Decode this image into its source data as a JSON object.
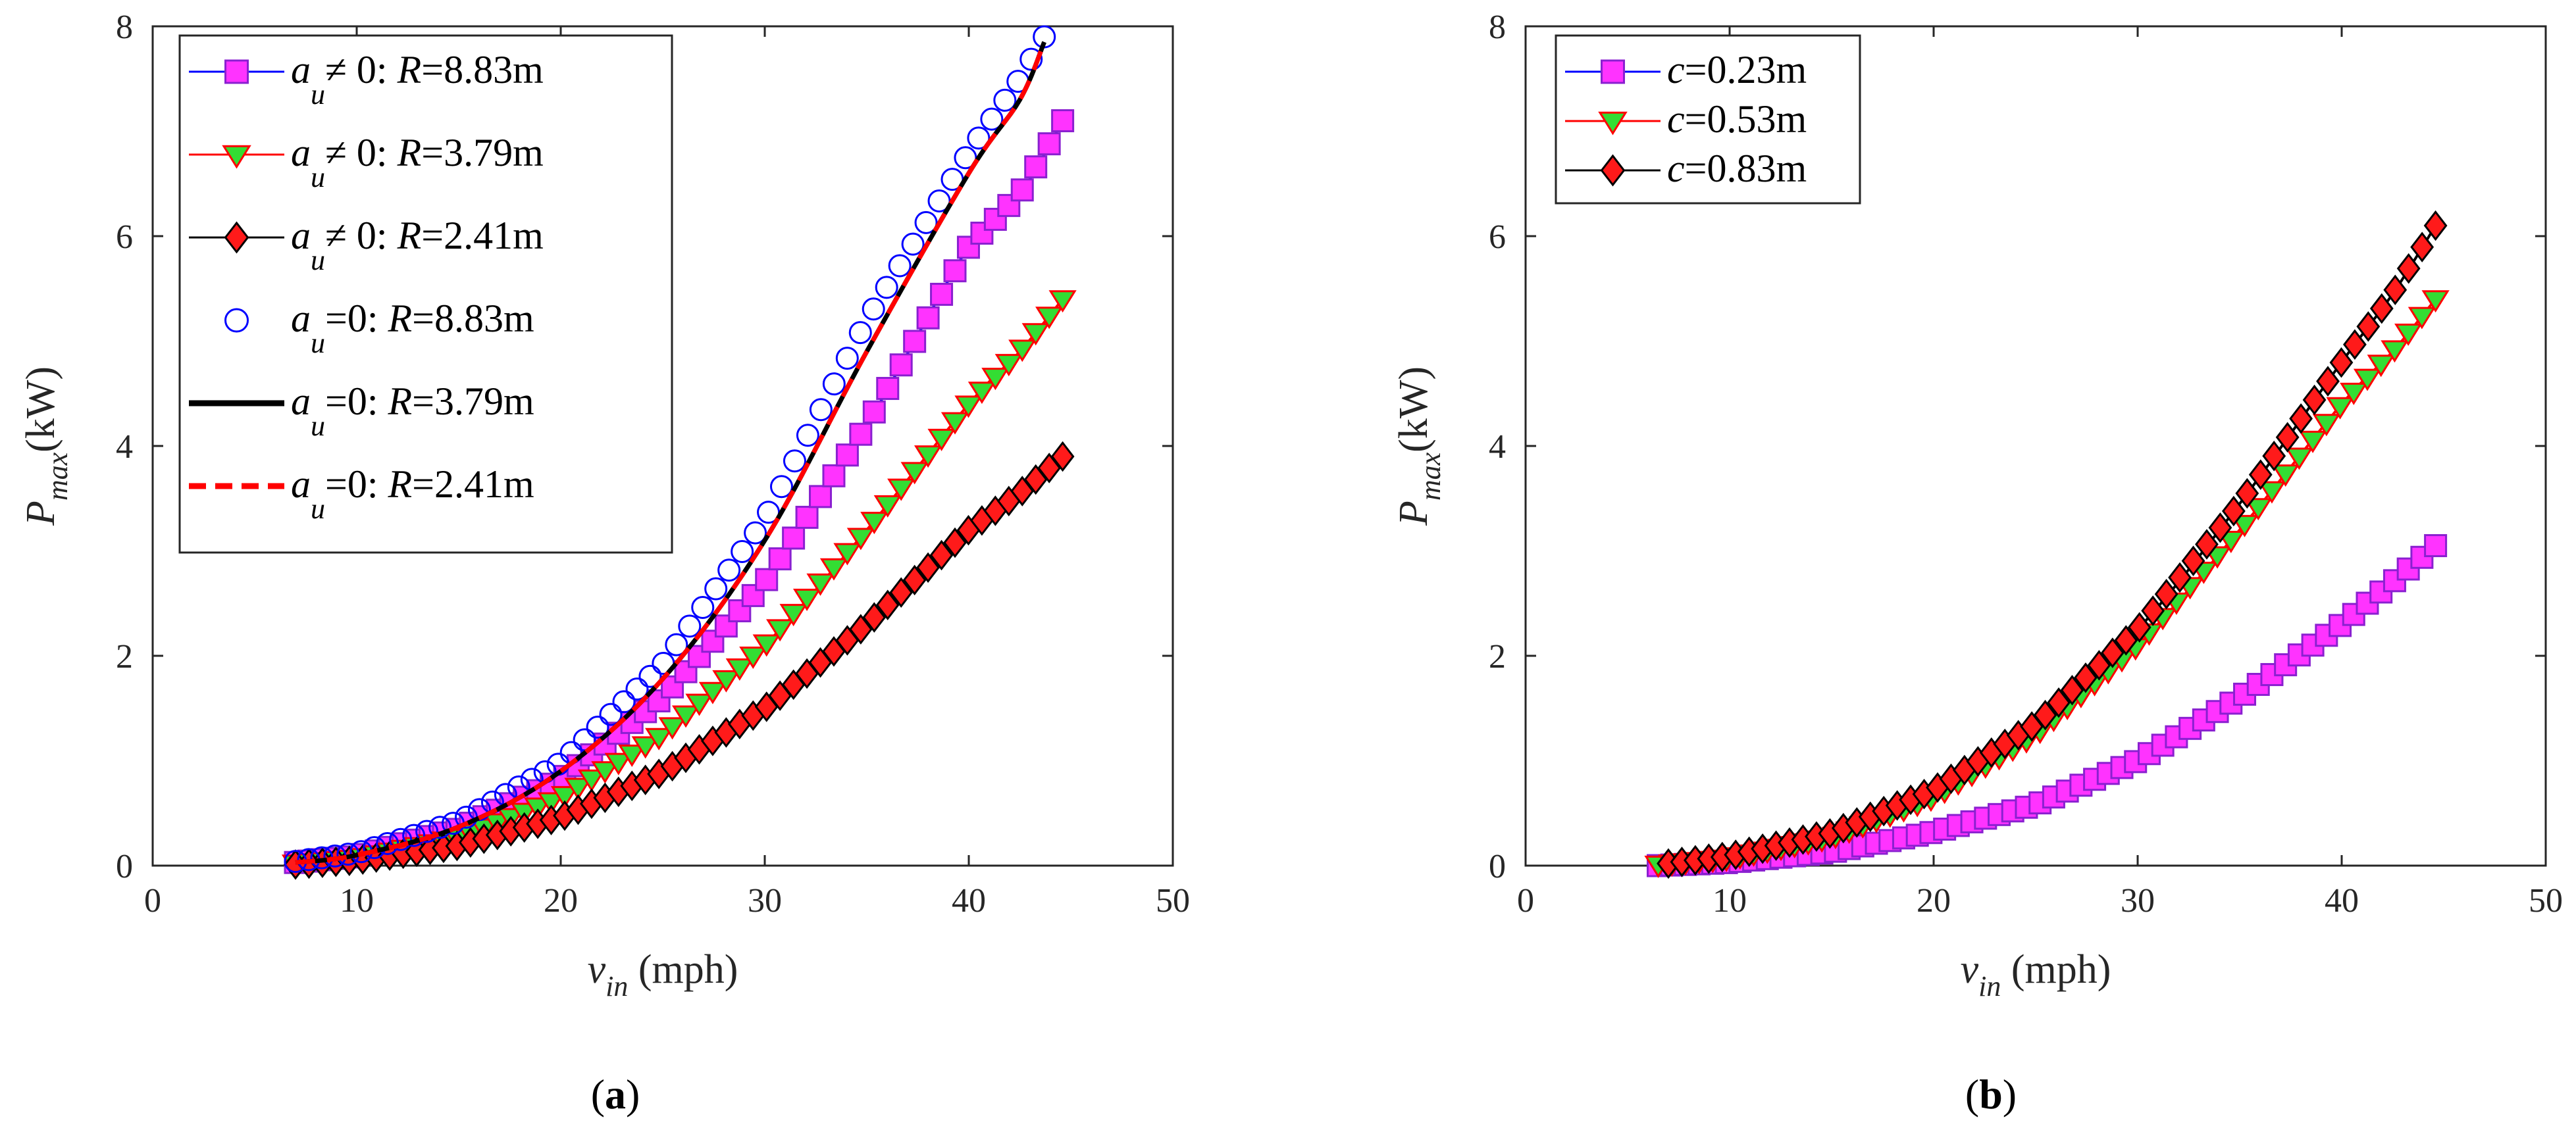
{
  "figure": {
    "panel_labels": [
      {
        "open": "(",
        "letter": "a",
        "close": ")"
      },
      {
        "open": "(",
        "letter": "b",
        "close": ")"
      }
    ]
  },
  "chart_data": [
    {
      "type": "line",
      "panel": "a",
      "xlabel": {
        "main": "v",
        "sub": "in",
        "unit": " (mph)"
      },
      "ylabel": {
        "main": "P",
        "sub": "max",
        "unit": "(kW)"
      },
      "xlim": [
        0,
        50
      ],
      "ylim": [
        0,
        8
      ],
      "xticks": [
        "0",
        "10",
        "20",
        "30",
        "40",
        "50"
      ],
      "yticks": [
        "0",
        "2",
        "4",
        "6",
        "8"
      ],
      "legend_position": "top-left",
      "series": [
        {
          "name": "a_u≠0: R=8.83m",
          "var": "a",
          "varsub": "u",
          "op": "≠ 0: ",
          "param": "R",
          "value": "=8.83m",
          "line": "#0000ff",
          "line_style": "solid",
          "marker": "square",
          "marker_fill": "#ff33ff",
          "marker_edge": "#8a20d0",
          "x": [
            7,
            10,
            15,
            20,
            25,
            30,
            35,
            40,
            42.5,
            44.6
          ],
          "y": [
            0.03,
            0.09,
            0.35,
            0.82,
            1.6,
            2.7,
            4.2,
            5.9,
            6.4,
            7.1
          ]
        },
        {
          "name": "a_u≠0: R=3.79m",
          "var": "a",
          "varsub": "u",
          "op": "≠ 0: ",
          "param": "R",
          "value": "=3.79m",
          "line": "#ff0000",
          "line_style": "solid",
          "marker": "triangle-down",
          "marker_fill": "#33dd33",
          "marker_edge": "#ff0000",
          "x": [
            7,
            10,
            15,
            20,
            25,
            30,
            35,
            40,
            42.5,
            44.6
          ],
          "y": [
            0.02,
            0.07,
            0.27,
            0.65,
            1.25,
            2.1,
            3.2,
            4.4,
            4.9,
            5.4
          ]
        },
        {
          "name": "a_u≠0: R=2.41m",
          "var": "a",
          "varsub": "u",
          "op": "≠ 0: ",
          "param": "R",
          "value": "=2.41m",
          "line": "#000000",
          "line_style": "solid",
          "marker": "diamond",
          "marker_fill": "#ff1a1a",
          "marker_edge": "#000000",
          "x": [
            7,
            10,
            15,
            20,
            25,
            30,
            35,
            40,
            42.5,
            44.6
          ],
          "y": [
            0.01,
            0.05,
            0.19,
            0.46,
            0.89,
            1.5,
            2.3,
            3.2,
            3.55,
            3.9
          ]
        },
        {
          "name": "a_u=0: R=8.83m",
          "var": "a",
          "varsub": "u",
          "op": "=0: ",
          "param": "R",
          "value": "=8.83m",
          "line": "none",
          "line_style": "none",
          "marker": "circle-open",
          "marker_fill": "none",
          "marker_edge": "#0000ff",
          "x": [
            7,
            10,
            15,
            20,
            25,
            30,
            35,
            40,
            42.5,
            43.7
          ],
          "y": [
            0.04,
            0.12,
            0.42,
            0.98,
            1.92,
            3.3,
            5.2,
            6.8,
            7.5,
            7.9
          ]
        },
        {
          "name": "a_u=0: R=3.79m",
          "var": "a",
          "varsub": "u",
          "op": "=0: ",
          "param": "R",
          "value": "=3.79m",
          "line": "#000000",
          "line_style": "solid",
          "marker": "none",
          "marker_fill": "none",
          "marker_edge": "none",
          "x": [
            7,
            10,
            15,
            20,
            25,
            30,
            35,
            40,
            42.5,
            43.7
          ],
          "y": [
            0.03,
            0.1,
            0.37,
            0.9,
            1.78,
            3.1,
            4.9,
            6.6,
            7.3,
            7.85
          ]
        },
        {
          "name": "a_u=0: R=2.41m",
          "var": "a",
          "varsub": "u",
          "op": "=0: ",
          "param": "R",
          "value": "=2.41m",
          "line": "#ff0000",
          "line_style": "dashed",
          "marker": "none",
          "marker_fill": "none",
          "marker_edge": "none",
          "x": [
            7,
            10,
            15,
            20,
            25,
            30,
            35,
            40,
            42.5,
            43.7
          ],
          "y": [
            0.03,
            0.1,
            0.37,
            0.9,
            1.78,
            3.1,
            4.9,
            6.6,
            7.3,
            7.85
          ]
        }
      ]
    },
    {
      "type": "line",
      "panel": "b",
      "xlabel": {
        "main": "v",
        "sub": "in",
        "unit": " (mph)"
      },
      "ylabel": {
        "main": "P",
        "sub": "max",
        "unit": "(kW)"
      },
      "xlim": [
        0,
        50
      ],
      "ylim": [
        0,
        8
      ],
      "xticks": [
        "0",
        "10",
        "20",
        "30",
        "40",
        "50"
      ],
      "yticks": [
        "0",
        "2",
        "4",
        "6",
        "8"
      ],
      "legend_position": "top-left",
      "series": [
        {
          "name": "c=0.23m",
          "var": "c",
          "varsub": "",
          "op": "",
          "param": "",
          "value": "=0.23m",
          "line": "#0000ff",
          "line_style": "solid",
          "marker": "square",
          "marker_fill": "#ff33ff",
          "marker_edge": "#8a20d0",
          "x": [
            6.5,
            10,
            15,
            20,
            25,
            30,
            35,
            40,
            42.5,
            44.6
          ],
          "y": [
            0.0,
            0.03,
            0.13,
            0.32,
            0.58,
            1.0,
            1.6,
            2.3,
            2.7,
            3.05
          ]
        },
        {
          "name": "c=0.53m",
          "var": "c",
          "varsub": "",
          "op": "",
          "param": "",
          "value": "=0.53m",
          "line": "#ff0000",
          "line_style": "solid",
          "marker": "triangle-down",
          "marker_fill": "#33dd33",
          "marker_edge": "#ff0000",
          "x": [
            6.5,
            10,
            15,
            20,
            25,
            30,
            35,
            40,
            42.5,
            44.6
          ],
          "y": [
            0.01,
            0.07,
            0.27,
            0.65,
            1.25,
            2.1,
            3.2,
            4.4,
            4.9,
            5.4
          ]
        },
        {
          "name": "c=0.83m",
          "var": "c",
          "varsub": "",
          "op": "",
          "param": "",
          "value": "=0.83m",
          "line": "#000000",
          "line_style": "solid",
          "marker": "diamond",
          "marker_fill": "#ff1a1a",
          "marker_edge": "#000000",
          "x": [
            7,
            10,
            15,
            20,
            25,
            30,
            35,
            40,
            42.5,
            44.6
          ],
          "y": [
            0.02,
            0.09,
            0.31,
            0.72,
            1.35,
            2.25,
            3.45,
            4.8,
            5.45,
            6.1
          ]
        }
      ]
    }
  ]
}
